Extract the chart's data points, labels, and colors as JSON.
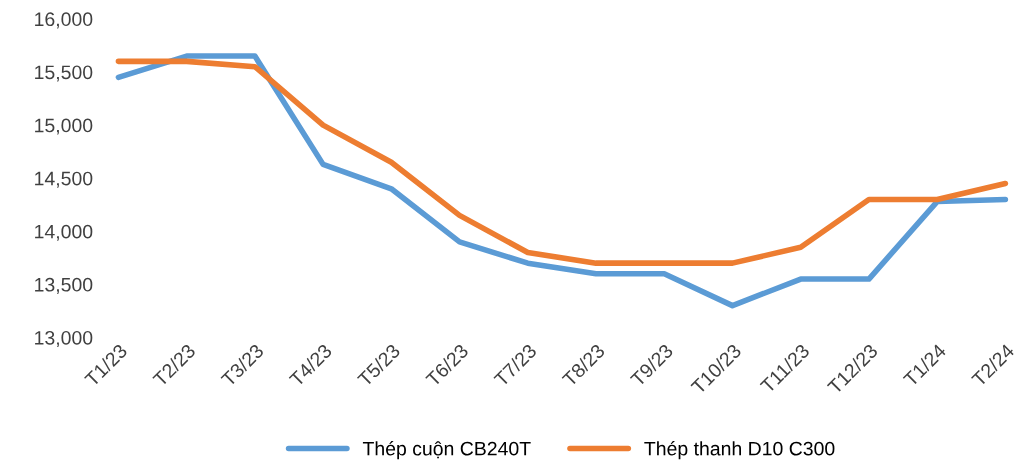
{
  "chart_data": {
    "type": "line",
    "categories": [
      "T1/23",
      "T2/23",
      "T3/23",
      "T4/23",
      "T5/23",
      "T6/23",
      "T7/23",
      "T8/23",
      "T9/23",
      "T10/23",
      "T11/23",
      "T12/23",
      "T1/24",
      "T2/24"
    ],
    "series": [
      {
        "name": "Thép cuộn CB240T",
        "color": "#5b9bd5",
        "values": [
          15450,
          15650,
          15650,
          14630,
          14400,
          13900,
          13700,
          13600,
          13600,
          13300,
          13550,
          13550,
          14280,
          14300
        ]
      },
      {
        "name": "Thép thanh D10 C300",
        "color": "#ed7d31",
        "values": [
          15600,
          15600,
          15550,
          15000,
          14650,
          14150,
          13800,
          13700,
          13700,
          13700,
          13850,
          14300,
          14300,
          14450
        ]
      }
    ],
    "ylim": [
      13000,
      16000
    ],
    "yticks": [
      {
        "value": 13000,
        "label": "13,000"
      },
      {
        "value": 13500,
        "label": "13,500"
      },
      {
        "value": 14000,
        "label": "14,000"
      },
      {
        "value": 14500,
        "label": "14,500"
      },
      {
        "value": 15000,
        "label": "15,000"
      },
      {
        "value": 15500,
        "label": "15,500"
      },
      {
        "value": 16000,
        "label": "16,000"
      }
    ],
    "grid": false,
    "legend": "bottom",
    "marker": "none",
    "line_style": "solid"
  }
}
